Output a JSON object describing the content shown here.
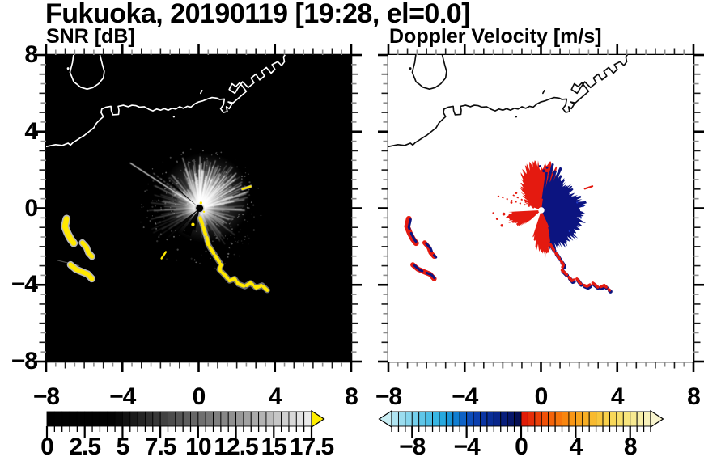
{
  "title": "Fukuoka, 20190119 [19:28, el=0.0]",
  "panels": {
    "snr": {
      "subtitle": "SNR [dB]",
      "x_tick_labels": [
        "−8",
        "−4",
        "0",
        "4",
        "8"
      ],
      "y_tick_labels": [
        "8",
        "4",
        "0",
        "−4",
        "−8"
      ],
      "colorbar": {
        "labels": [
          "0",
          "2.5",
          "5",
          "7.5",
          "10",
          "12.5",
          "15",
          "17.5"
        ],
        "range": [
          0,
          17.5
        ],
        "step": 0.5,
        "over_arrow_color": "#ffee00",
        "stops": [
          [
            0,
            "#000000"
          ],
          [
            4.5,
            "#030303"
          ],
          [
            9,
            "#5a5a5a"
          ],
          [
            13,
            "#9c9c9c"
          ],
          [
            17.5,
            "#efefef"
          ]
        ]
      }
    },
    "doppler": {
      "subtitle": "Doppler Velocity [m/s]",
      "x_tick_labels": [
        "−8",
        "−4",
        "0",
        "4",
        "8"
      ],
      "colorbar": {
        "labels": [
          "−8",
          "−4",
          "0",
          "4",
          "8"
        ],
        "range": [
          -10,
          10
        ],
        "step": 0.5,
        "stops": [
          [
            -10,
            "#cdeff4"
          ],
          [
            -8,
            "#7dd2ec"
          ],
          [
            -6,
            "#2eb2e2"
          ],
          [
            -5,
            "#128cd6"
          ],
          [
            -4,
            "#0c54c0"
          ],
          [
            -3,
            "#0a38a8"
          ],
          [
            -2,
            "#082a92"
          ],
          [
            -1,
            "#081a74"
          ],
          [
            -0.01,
            "#060c4a"
          ],
          [
            0.01,
            "#df1408"
          ],
          [
            1,
            "#e93608"
          ],
          [
            2,
            "#f25a08"
          ],
          [
            3,
            "#f87e0c"
          ],
          [
            4,
            "#f89e18"
          ],
          [
            5,
            "#f8b428"
          ],
          [
            6,
            "#f8cc42"
          ],
          [
            7,
            "#f8dc60"
          ],
          [
            8,
            "#f8e886"
          ],
          [
            9,
            "#f8f0b2"
          ],
          [
            10,
            "#f8f4d0"
          ]
        ]
      }
    }
  },
  "colors": {
    "background": "#ffffff",
    "snr_background": "#000000",
    "snr_coast": "#ffffff",
    "doppler_coast": "#0d0d0d",
    "snr_high": "#ffe800",
    "beam": "#ffffff",
    "doppler_positive": "#e41a10",
    "doppler_negative": "#0c1480",
    "axis": "#000000",
    "minor_tick": "#8a8a8a"
  },
  "chart_data": [
    {
      "type": "heatmap",
      "panel": "left",
      "title": "SNR [dB]",
      "xlim": [
        -8,
        8
      ],
      "ylim": [
        -8,
        8
      ],
      "x_ticks": [
        -8,
        -4,
        0,
        4,
        8
      ],
      "y_ticks": [
        -8,
        -4,
        0,
        4,
        8
      ],
      "minor_tick_step": 0.5,
      "grid": false,
      "colorbar": {
        "orientation": "horizontal",
        "range": [
          0,
          17.5
        ],
        "ticks": [
          0,
          2.5,
          5,
          7.5,
          10,
          12.5,
          15,
          17.5
        ],
        "minor_tick_step": 0.5,
        "palette": "grayscale black to white",
        "over_range": "yellow arrow"
      },
      "features": [
        "black background = low SNR",
        "white coastline of Hakata Bay along upper third with angular harbor structures from (1.2,5.0) to (4.5,7.9) and island near (-5.8,7)",
        "bright lidar beams radiating from origin out to r≈2.5, densest toward N–NE",
        "long thin bright beam toward WNW reaching r≈4",
        "dark shadow wedges toward SSW",
        "yellow high-SNR chain from origin toward (3.6,−4.3)",
        "yellow patches near (−6.9,−1.2), (−5.8,−2.2), (−6.1,−3.3)",
        "small yellow streak near (2.5,1.1)"
      ]
    },
    {
      "type": "heatmap",
      "panel": "right",
      "title": "Doppler Velocity [m/s]",
      "xlim": [
        -8,
        8
      ],
      "ylim": [
        -8,
        8
      ],
      "x_ticks": [
        -8,
        -4,
        0,
        4,
        8
      ],
      "y_ticks": [
        -8,
        -4,
        0,
        4,
        8
      ],
      "minor_tick_step": 0.5,
      "grid": false,
      "colorbar": {
        "orientation": "horizontal",
        "range": [
          -10,
          10
        ],
        "ticks": [
          -8,
          -4,
          0,
          4,
          8
        ],
        "minor_tick_step": 0.5,
        "palette": "pale cyan → blue → dark navy (negative) | red → orange → yellow → cream (positive)",
        "under_range": "pale cyan arrow",
        "over_range": "cream arrow"
      },
      "features": [
        "white background = no data",
        "black coastline identical to left panel",
        "positive (red) velocity lobe N–W of origin out to r≈2.7, plus west wedge and south spikes",
        "negative (dark navy) velocity lobe E–SE of origin out to r≈2.4",
        "red/navy speckled chain toward (3.6,−4.3)",
        "red patches with navy fringes near (−6.9,−1.2), (−5.8,−2.2), (−6.1,−3.3)"
      ]
    }
  ]
}
